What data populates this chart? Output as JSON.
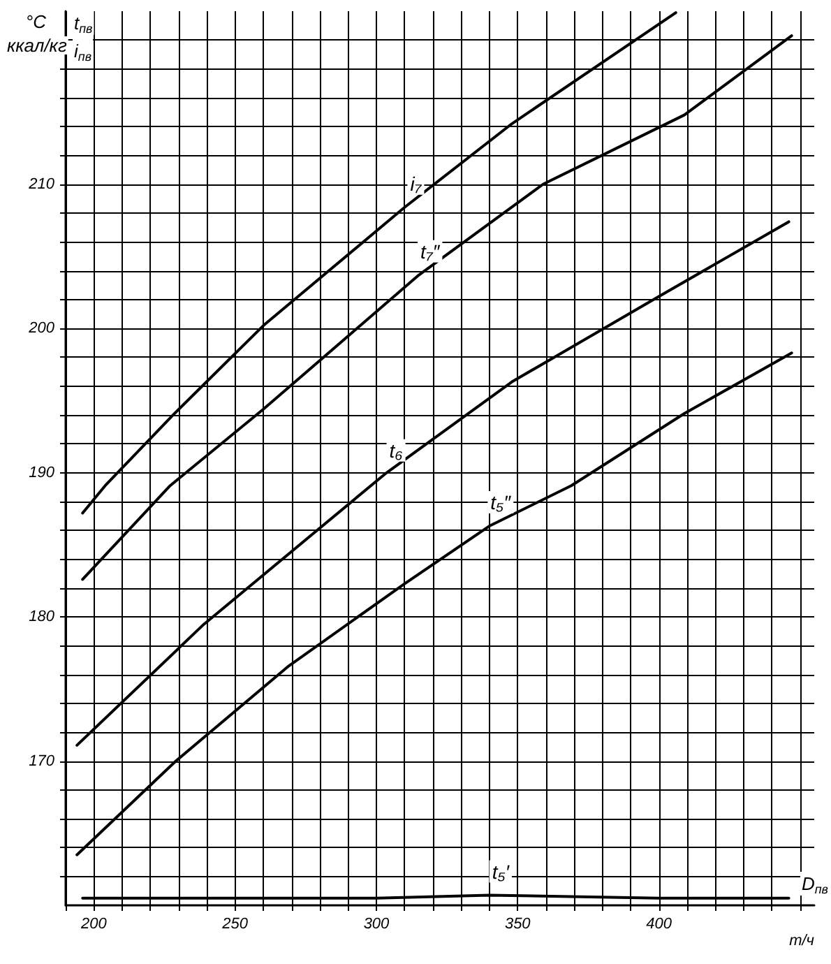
{
  "chart_data": {
    "type": "line",
    "ylabel": "°C",
    "xlabel": "т/ч",
    "annotations": [
      "ккал/кг",
      "t$_{пв}$",
      "i$_{пв}$",
      "D$_{пв}$"
    ],
    "xlim": [
      190,
      455
    ],
    "ylim": [
      160,
      222
    ],
    "xticks": [
      {
        "value": 190,
        "label": null
      },
      200,
      {
        "value": 210,
        "label": null
      },
      {
        "value": 220,
        "label": null
      },
      {
        "value": 230,
        "label": null
      },
      {
        "value": 240,
        "label": null
      },
      250,
      {
        "value": 260,
        "label": null
      },
      {
        "value": 270,
        "label": null
      },
      {
        "value": 280,
        "label": null
      },
      {
        "value": 290,
        "label": null
      },
      300,
      {
        "value": 310,
        "label": null
      },
      {
        "value": 320,
        "label": null
      },
      {
        "value": 330,
        "label": null
      },
      {
        "value": 340,
        "label": null
      },
      350,
      {
        "value": 360,
        "label": null
      },
      {
        "value": 370,
        "label": null
      },
      {
        "value": 380,
        "label": null
      },
      {
        "value": 390,
        "label": null
      },
      400,
      {
        "value": 410,
        "label": null
      },
      {
        "value": 420,
        "label": null
      },
      {
        "value": 430,
        "label": null
      },
      {
        "value": 440,
        "label": null
      },
      {
        "value": 450,
        "label": null
      }
    ],
    "yticks": [
      {
        "value": 162,
        "label": null
      },
      {
        "value": 164,
        "label": null
      },
      {
        "value": 166,
        "label": null
      },
      {
        "value": 168,
        "label": null
      },
      170,
      {
        "value": 172,
        "label": null
      },
      {
        "value": 174,
        "label": null
      },
      {
        "value": 176,
        "label": null
      },
      {
        "value": 178,
        "label": null
      },
      180,
      {
        "value": 182,
        "label": null
      },
      {
        "value": 184,
        "label": null
      },
      {
        "value": 186,
        "label": null
      },
      {
        "value": 188,
        "label": null
      },
      190,
      {
        "value": 192,
        "label": null
      },
      {
        "value": 194,
        "label": null
      },
      {
        "value": 196,
        "label": null
      },
      {
        "value": 198,
        "label": null
      },
      200,
      {
        "value": 202,
        "label": null
      },
      {
        "value": 204,
        "label": null
      },
      {
        "value": 206,
        "label": null
      },
      {
        "value": 208,
        "label": null
      },
      210,
      {
        "value": 212,
        "label": null
      },
      {
        "value": 214,
        "label": null
      },
      {
        "value": 216,
        "label": null
      },
      {
        "value": 218,
        "label": null
      },
      {
        "value": 220,
        "label": null
      }
    ],
    "grid": true,
    "legend": false,
    "marker": "none",
    "line_style": "solid",
    "series": [
      {
        "name": "i₇",
        "color": "#000000",
        "x": [
          196,
          204,
          228,
          260,
          310,
          348,
          406
        ],
        "values": [
          187.2,
          189.1,
          194.0,
          200.2,
          208.4,
          214.2,
          221.9
        ]
      },
      {
        "name": "t₇″",
        "color": "#000000",
        "x": [
          196,
          227,
          260,
          315,
          359,
          409,
          447
        ],
        "values": [
          182.6,
          189.1,
          194.4,
          203.7,
          210.0,
          214.8,
          220.3
        ]
      },
      {
        "name": "t₆",
        "color": "#000000",
        "x": [
          194,
          239,
          303,
          348,
          399,
          446
        ],
        "values": [
          171.1,
          179.5,
          189.9,
          196.3,
          202.1,
          207.4
        ]
      },
      {
        "name": "t₅″",
        "color": "#000000",
        "x": [
          194,
          229,
          269,
          310,
          340,
          369,
          409,
          447
        ],
        "values": [
          163.5,
          170.0,
          176.6,
          182.3,
          186.3,
          189.1,
          194.1,
          198.3
        ]
      },
      {
        "name": "t₅′",
        "color": "#000000",
        "x": [
          196,
          300,
          340,
          400,
          446
        ],
        "values": [
          160.5,
          160.5,
          160.7,
          160.5,
          160.5
        ]
      }
    ]
  }
}
